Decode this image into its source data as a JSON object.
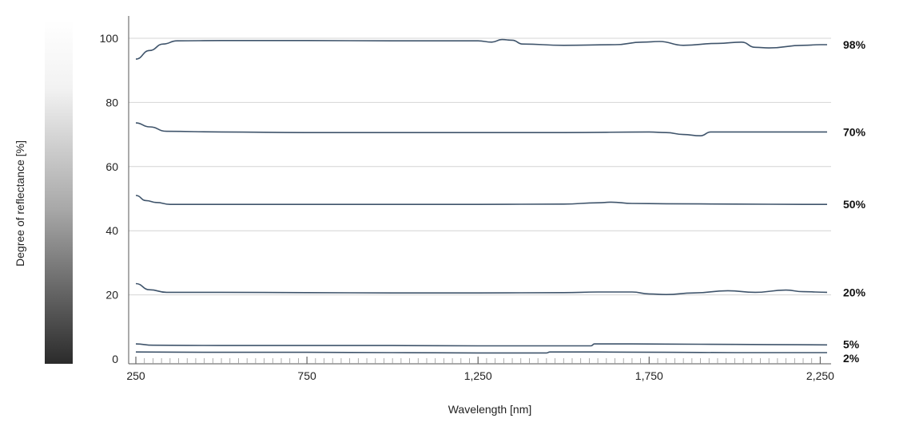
{
  "chart_data": {
    "type": "line",
    "title": "",
    "xlabel": "Wavelength [nm]",
    "ylabel": "Degree of reflectance [%]",
    "xlim": [
      250,
      2280
    ],
    "ylim": [
      0,
      100
    ],
    "x_ticks": [
      250,
      750,
      1250,
      1750,
      2250
    ],
    "x_tick_labels": [
      "250",
      "750",
      "1,250",
      "1,750",
      "2,250"
    ],
    "y_ticks": [
      0,
      20,
      40,
      60,
      80,
      100
    ],
    "y_tick_labels": [
      "0",
      "20",
      "40",
      "60",
      "80",
      "100"
    ],
    "grid": true,
    "colors": {
      "line": "#3f546b",
      "grid": "#d4d4d4",
      "gradient_top": "#ffffff",
      "gradient_bottom": "#2b2b2b"
    },
    "series": [
      {
        "label": "98%",
        "x": [
          250,
          290,
          330,
          370,
          500,
          750,
          1000,
          1250,
          1290,
          1320,
          1350,
          1380,
          1500,
          1650,
          1730,
          1780,
          1850,
          1950,
          2020,
          2060,
          2100,
          2200,
          2250,
          2270
        ],
        "y": [
          93.5,
          96.2,
          98.2,
          99.2,
          99.3,
          99.3,
          99.2,
          99.2,
          98.8,
          99.6,
          99.4,
          98.2,
          97.8,
          98.0,
          98.8,
          99.0,
          97.8,
          98.4,
          98.8,
          97.2,
          97.0,
          97.8,
          98.0,
          98.0
        ]
      },
      {
        "label": "70%",
        "x": [
          250,
          290,
          340,
          500,
          750,
          1000,
          1250,
          1500,
          1750,
          1800,
          1850,
          1900,
          1930,
          2000,
          2100,
          2200,
          2270
        ],
        "y": [
          73.6,
          72.4,
          71.0,
          70.8,
          70.6,
          70.6,
          70.6,
          70.6,
          70.8,
          70.6,
          70.0,
          69.6,
          70.8,
          70.8,
          70.8,
          70.8,
          70.8
        ]
      },
      {
        "label": "50%",
        "x": [
          250,
          280,
          310,
          350,
          500,
          750,
          1000,
          1250,
          1500,
          1600,
          1640,
          1700,
          1800,
          2000,
          2200,
          2270
        ],
        "y": [
          51.0,
          49.4,
          48.8,
          48.2,
          48.2,
          48.2,
          48.2,
          48.2,
          48.3,
          48.7,
          48.9,
          48.5,
          48.4,
          48.3,
          48.2,
          48.2
        ],
        "label_y": 48.2
      },
      {
        "label": "20%",
        "x": [
          250,
          290,
          340,
          500,
          750,
          1000,
          1250,
          1500,
          1600,
          1700,
          1750,
          1800,
          1880,
          1980,
          2060,
          2150,
          2200,
          2270
        ],
        "y": [
          23.5,
          21.6,
          20.8,
          20.8,
          20.7,
          20.6,
          20.6,
          20.7,
          20.9,
          20.9,
          20.3,
          20.1,
          20.6,
          21.3,
          20.8,
          21.5,
          21.0,
          20.8
        ]
      },
      {
        "label": "5%",
        "x": [
          250,
          300,
          500,
          750,
          1000,
          1250,
          1400,
          1450,
          1500,
          1550,
          1580,
          1590,
          1700,
          1900,
          2100,
          2270
        ],
        "y": [
          4.7,
          4.3,
          4.2,
          4.2,
          4.2,
          4.1,
          4.1,
          4.1,
          4.1,
          4.1,
          4.1,
          4.7,
          4.7,
          4.6,
          4.5,
          4.4
        ],
        "label_y": 4.6
      },
      {
        "label": "2%",
        "x": [
          250,
          500,
          750,
          1000,
          1250,
          1450,
          1460,
          1600,
          1800,
          2000,
          2270
        ],
        "y": [
          2.2,
          2.1,
          2.1,
          2.0,
          1.9,
          1.9,
          2.2,
          2.2,
          2.1,
          2.0,
          2.0
        ],
        "label_y": 0.2
      }
    ]
  }
}
